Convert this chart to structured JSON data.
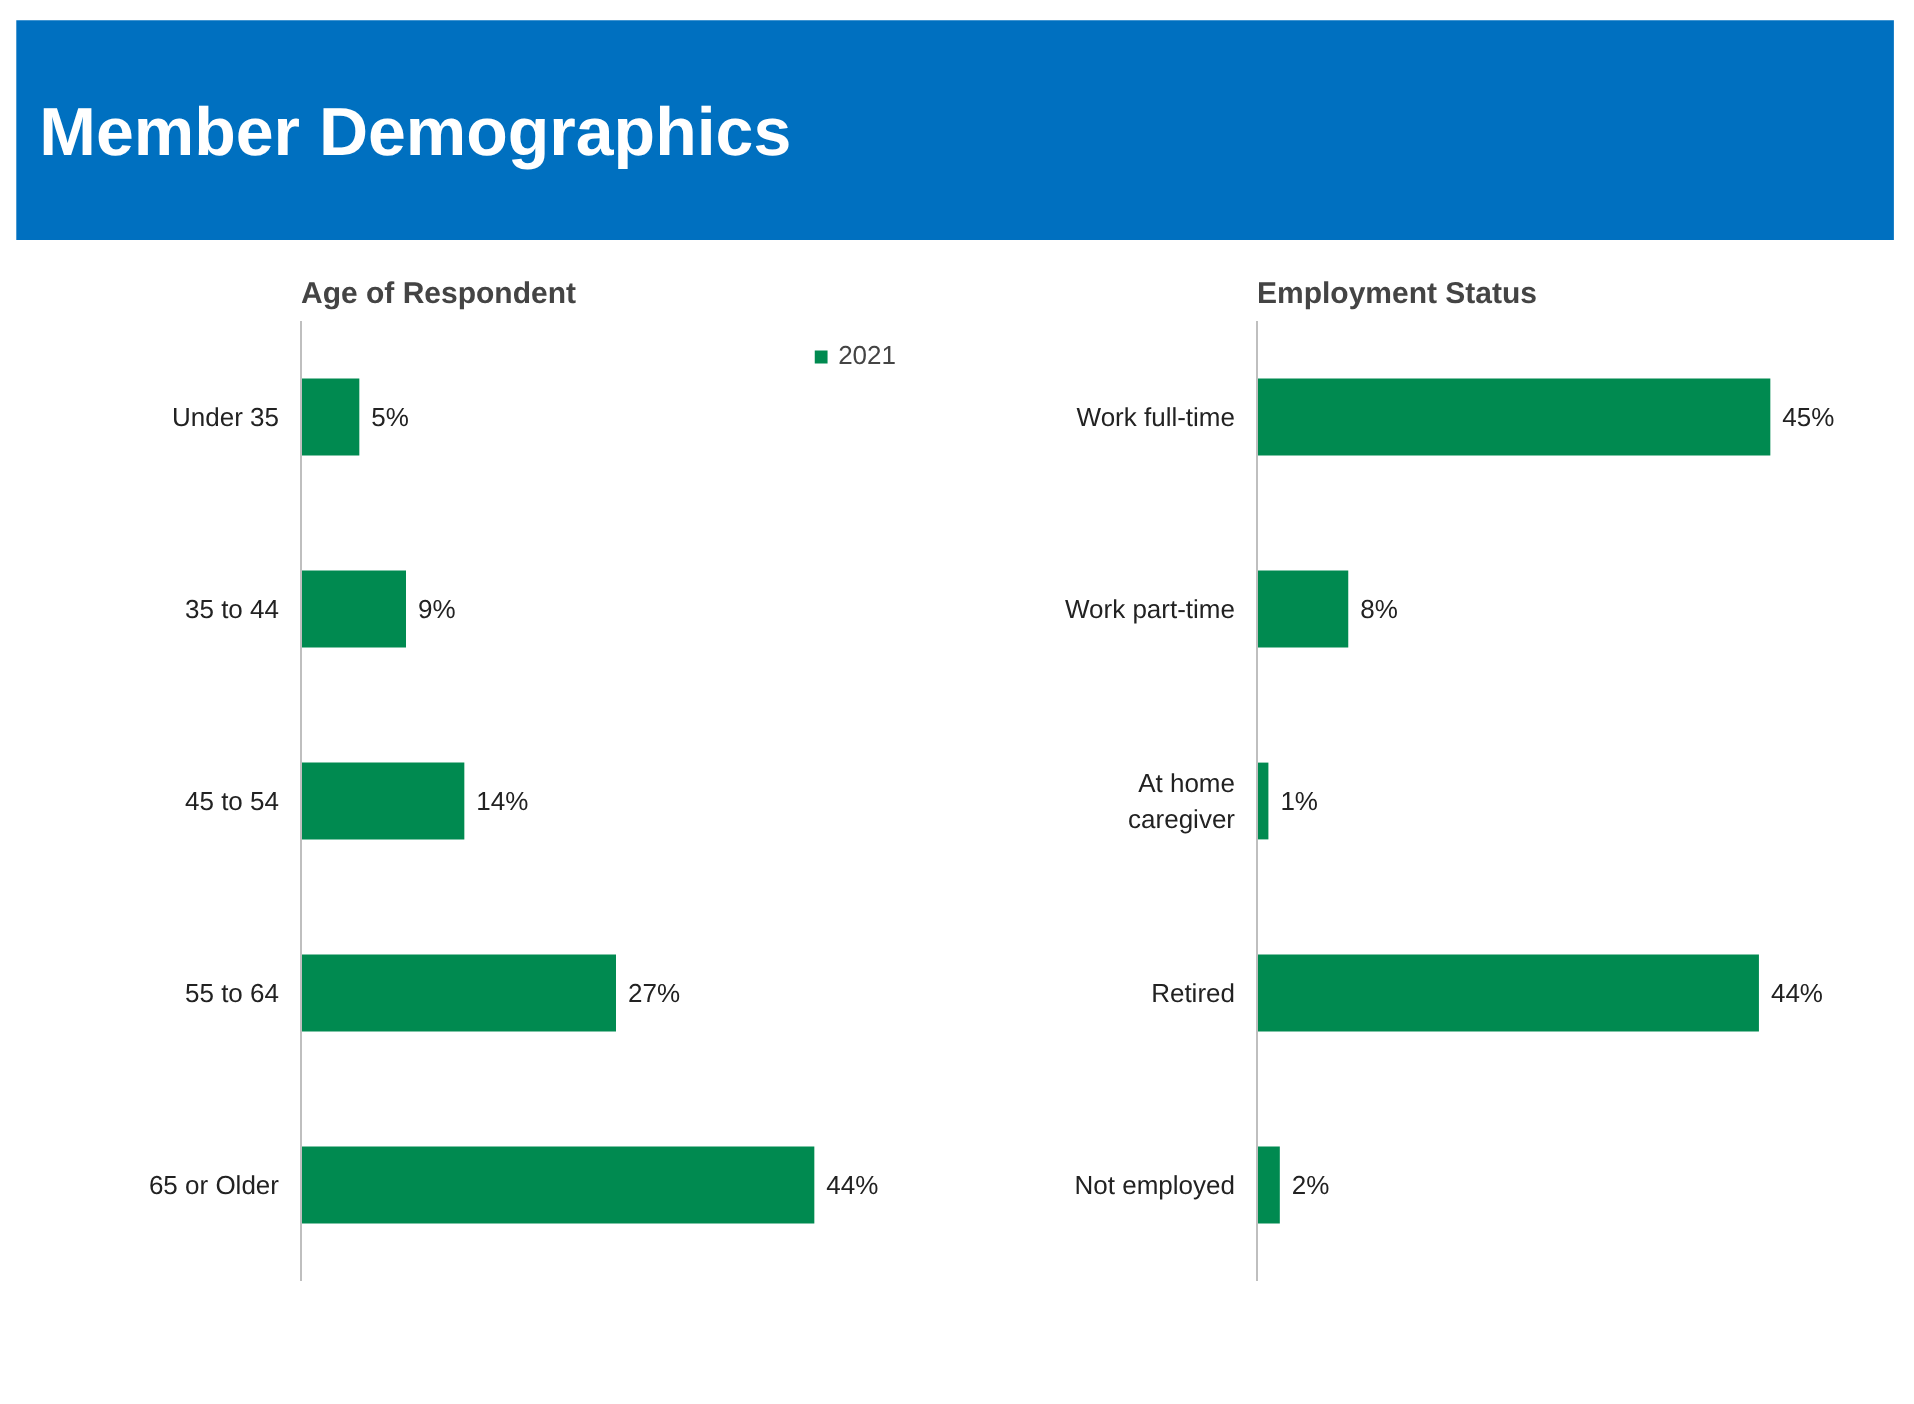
{
  "chart_data": [
    {
      "type": "other",
      "title": "Member Demographics"
    },
    {
      "type": "bar",
      "orientation": "horizontal",
      "title": "Age of Respondent",
      "categories": [
        "Under 35",
        "35 to 44",
        "45 to 54",
        "55 to 64",
        "65 or Older"
      ],
      "series": [
        {
          "name": "2021",
          "color": "#008a50",
          "values": [
            5,
            9,
            14,
            27,
            44
          ],
          "value_labels": [
            "5%",
            "9%",
            "14%",
            "27%",
            "44%"
          ]
        }
      ],
      "legend": "top right",
      "grid": false
    },
    {
      "type": "bar",
      "orientation": "horizontal",
      "title": "Employment Status",
      "categories": [
        "Work full-time",
        "Work part-time",
        "At home caregiver",
        "Retired",
        "Not employed"
      ],
      "series": [
        {
          "color": "#008a50",
          "values": [
            45,
            8,
            1,
            44,
            2
          ],
          "value_labels": [
            "45%",
            "8%",
            "1%",
            "44%",
            "2%"
          ]
        }
      ],
      "grid": false
    }
  ]
}
